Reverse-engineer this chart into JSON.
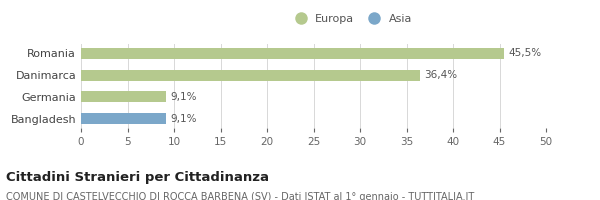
{
  "categories": [
    "Bangladesh",
    "Germania",
    "Danimarca",
    "Romania"
  ],
  "values": [
    9.1,
    9.1,
    36.4,
    45.5
  ],
  "colors": [
    "#7ba7c9",
    "#b5c98e",
    "#b5c98e",
    "#b5c98e"
  ],
  "labels": [
    "9,1%",
    "9,1%",
    "36,4%",
    "45,5%"
  ],
  "xlim": [
    0,
    50
  ],
  "xticks": [
    0,
    5,
    10,
    15,
    20,
    25,
    30,
    35,
    40,
    45,
    50
  ],
  "legend_europa_color": "#b5c98e",
  "legend_asia_color": "#7ba7c9",
  "title": "Cittadini Stranieri per Cittadinanza",
  "subtitle": "COMUNE DI CASTELVECCHIO DI ROCCA BARBENA (SV) - Dati ISTAT al 1° gennaio - TUTTITALIA.IT",
  "bg_color": "#ffffff",
  "bar_height": 0.5,
  "grid_color": "#d8d8d8",
  "label_fontsize": 7.5,
  "title_fontsize": 9.5,
  "subtitle_fontsize": 7.0,
  "tick_fontsize": 7.5,
  "ytick_fontsize": 8.0,
  "legend_fontsize": 8.0
}
